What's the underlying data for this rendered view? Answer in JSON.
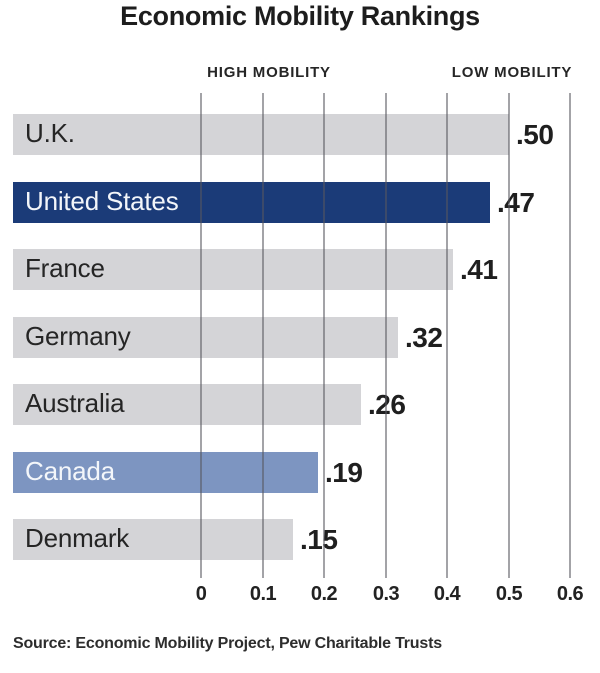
{
  "title": "Economic Mobility Rankings",
  "axis_headers": {
    "left": "HIGH MOBILITY",
    "right": "LOW MOBILITY"
  },
  "source": "Source: Economic Mobility Project, Pew Charitable Trusts",
  "colors": {
    "bar_default": "#d4d4d7",
    "bar_primary": "#1b3b78",
    "bar_secondary": "#7d95c1",
    "bar_text_dark": "#252525",
    "bar_text_light": "#f3f6fa",
    "gridline": "rgba(88,88,94,0.55)",
    "value_text": "#1f1f1f"
  },
  "chart_data": {
    "type": "bar",
    "orientation": "horizontal",
    "title": "Economic Mobility Rankings",
    "categories": [
      "U.K.",
      "United States",
      "France",
      "Germany",
      "Australia",
      "Canada",
      "Denmark"
    ],
    "values": [
      0.5,
      0.47,
      0.41,
      0.32,
      0.26,
      0.19,
      0.15
    ],
    "bars": [
      {
        "country": "U.K.",
        "value": 0.5,
        "label": ".50",
        "emphasis": "none"
      },
      {
        "country": "United States",
        "value": 0.47,
        "label": ".47",
        "emphasis": "primary"
      },
      {
        "country": "France",
        "value": 0.41,
        "label": ".41",
        "emphasis": "none"
      },
      {
        "country": "Germany",
        "value": 0.32,
        "label": ".32",
        "emphasis": "none"
      },
      {
        "country": "Australia",
        "value": 0.26,
        "label": ".26",
        "emphasis": "none"
      },
      {
        "country": "Canada",
        "value": 0.19,
        "label": ".19",
        "emphasis": "secondary"
      },
      {
        "country": "Denmark",
        "value": 0.15,
        "label": ".15",
        "emphasis": "none"
      }
    ],
    "x_ticks": [
      "0",
      "0.1",
      "0.2",
      "0.3",
      "0.4",
      "0.5",
      "0.6"
    ],
    "x_tick_values": [
      0,
      0.1,
      0.2,
      0.3,
      0.4,
      0.5,
      0.6
    ],
    "xlim": [
      0,
      0.6
    ],
    "grid": "vertical",
    "annotations": [
      "HIGH MOBILITY",
      "LOW MOBILITY"
    ],
    "xlabel": "",
    "ylabel": ""
  }
}
